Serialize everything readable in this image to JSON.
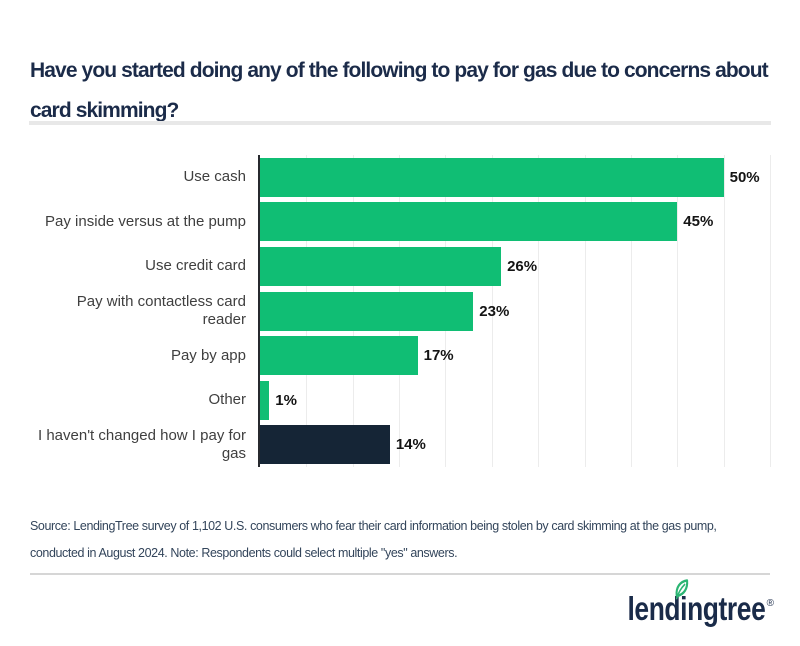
{
  "header": {
    "title": "Have you started doing any of the following to pay for gas due to concerns about card skimming?",
    "title_lines": [
      "Have you started doing any of the following to pay for gas due to concerns about",
      "card skimming?"
    ],
    "title_color": "#1B2B49"
  },
  "chart_data": {
    "type": "bar",
    "orientation": "horizontal",
    "title": "Have you started doing any of the following to pay for gas due to concerns about card skimming?",
    "categories": [
      "Use cash",
      "Pay inside versus at the pump",
      "Use credit card",
      "Pay with contactless card reader",
      "Pay by app",
      "Other",
      "I haven't changed how I pay for gas"
    ],
    "values": [
      50,
      45,
      26,
      23,
      17,
      1,
      14
    ],
    "value_labels": [
      "50%",
      "45%",
      "26%",
      "23%",
      "17%",
      "1%",
      "14%"
    ],
    "xlim": [
      0,
      55
    ],
    "gridline_step": 5,
    "grid": "vertical",
    "legend": "none",
    "bar_color_default": "#10BE74",
    "bar_color_highlight": "#152536",
    "highlight_index": 6,
    "axis_color": "#27292E",
    "gridline_color": "#ECECEC"
  },
  "footer": {
    "source": "Source: LendingTree survey of 1,102 U.S. consumers who fear their card information being stolen by card skimming at the gas pump, conducted in August 2024. Note: Respondents could select multiple \"yes\" answers.",
    "source_lines": [
      "Source: LendingTree survey of 1,102 U.S. consumers who fear their card information being stolen by card skimming at the gas pump,",
      "conducted in August 2024. Note: Respondents could select multiple \"yes\" answers."
    ]
  },
  "branding": {
    "logo_text": "lendingtree",
    "trademark": "®",
    "logo_color": "#1A2B49",
    "leaf_color": "#2BB573"
  }
}
